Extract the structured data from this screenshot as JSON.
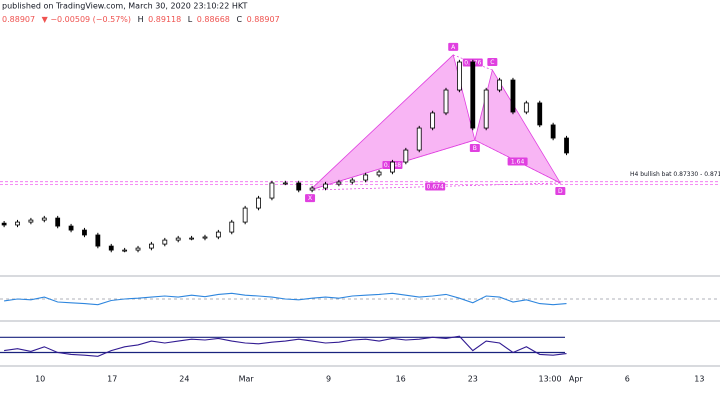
{
  "header": {
    "published": "published on TradingView.com, March 30, 2020 23:10:22 HKT",
    "open": "0.88907",
    "change": "▼ −0.00509 (−0.57%)",
    "high": {
      "label": "H",
      "value": "0.89118"
    },
    "low": {
      "label": "L",
      "value": "0.88668"
    },
    "close": {
      "label": "C",
      "value": "0.88907"
    }
  },
  "chart_data": [
    {
      "type": "candlestick",
      "color": "#000000",
      "xlim": [
        6.1,
        76
      ],
      "ylim": [
        0.822,
        0.9732
      ],
      "xticks": [
        10,
        17,
        24,
        {
          "value": 30,
          "label": "Mar"
        },
        {
          "value": 38,
          "label": "9"
        },
        {
          "value": 45,
          "label": "16"
        },
        {
          "value": 52,
          "label": "23"
        },
        {
          "value": 59.5,
          "label": "13:00"
        },
        {
          "value": 62,
          "label": "Apr"
        },
        {
          "value": 67,
          "label": "6"
        },
        {
          "value": 74,
          "label": "13"
        }
      ],
      "x": [
        6.5,
        7.8,
        9.1,
        10.4,
        11.7,
        13,
        14.3,
        15.6,
        16.9,
        18.2,
        19.5,
        20.8,
        22.1,
        23.4,
        24.7,
        26,
        27.3,
        28.6,
        29.9,
        31.2,
        32.5,
        33.8,
        35.1,
        36.4,
        37.7,
        39,
        40.3,
        41.6,
        42.9,
        44.2,
        45.5,
        46.8,
        48.1,
        49.4,
        50.7,
        52,
        53.3,
        54.6,
        55.9,
        57.2,
        58.5,
        59.8,
        61.1
      ],
      "open": [
        0.8505,
        0.8495,
        0.8511,
        0.8522,
        0.8533,
        0.8489,
        0.8467,
        0.844,
        0.8379,
        0.8357,
        0.8357,
        0.8368,
        0.839,
        0.8412,
        0.8423,
        0.8423,
        0.8429,
        0.8456,
        0.8511,
        0.8588,
        0.8643,
        0.8726,
        0.8726,
        0.8687,
        0.8698,
        0.872,
        0.8731,
        0.8742,
        0.877,
        0.8786,
        0.8841,
        0.8907,
        0.9028,
        0.9111,
        0.9237,
        0.9391,
        0.9028,
        0.9237,
        0.9292,
        0.9116,
        0.9166,
        0.9045,
        0.8973
      ],
      "high": [
        0.8517,
        0.8523,
        0.8534,
        0.8545,
        0.8545,
        0.8501,
        0.8479,
        0.8452,
        0.8391,
        0.8369,
        0.838,
        0.8402,
        0.8424,
        0.8435,
        0.8435,
        0.8441,
        0.8468,
        0.8523,
        0.86,
        0.8655,
        0.8738,
        0.8738,
        0.8738,
        0.871,
        0.8732,
        0.8743,
        0.8754,
        0.8782,
        0.8798,
        0.8853,
        0.8919,
        0.904,
        0.9123,
        0.9249,
        0.9403,
        0.9403,
        0.9249,
        0.9304,
        0.9304,
        0.9178,
        0.9178,
        0.9057,
        0.8985
      ],
      "low": [
        0.8483,
        0.8483,
        0.8499,
        0.851,
        0.8477,
        0.8455,
        0.8428,
        0.8367,
        0.8345,
        0.8345,
        0.8345,
        0.8356,
        0.8378,
        0.84,
        0.8411,
        0.8411,
        0.8417,
        0.8444,
        0.8499,
        0.8576,
        0.8631,
        0.8714,
        0.8675,
        0.8675,
        0.8686,
        0.8708,
        0.8719,
        0.873,
        0.8758,
        0.8774,
        0.8829,
        0.8895,
        0.9016,
        0.9099,
        0.9225,
        0.9016,
        0.9016,
        0.9225,
        0.9104,
        0.9104,
        0.9033,
        0.8961,
        0.8879
      ],
      "close": [
        0.8495,
        0.8511,
        0.8522,
        0.8533,
        0.8489,
        0.8467,
        0.844,
        0.8379,
        0.8357,
        0.8357,
        0.8368,
        0.839,
        0.8412,
        0.8423,
        0.8423,
        0.8429,
        0.8456,
        0.8511,
        0.8588,
        0.8643,
        0.8726,
        0.8726,
        0.8687,
        0.8698,
        0.872,
        0.8731,
        0.8742,
        0.877,
        0.8786,
        0.8841,
        0.8907,
        0.9028,
        0.9111,
        0.9237,
        0.9391,
        0.9028,
        0.9237,
        0.9292,
        0.9116,
        0.9166,
        0.9045,
        0.8973,
        0.8891
      ],
      "pattern": {
        "color": "#e040e0",
        "fill": "#f59cf0",
        "points": [
          {
            "label": "X",
            "x": 36.2,
            "price": 0.8687
          },
          {
            "label": "A",
            "x": 50.1,
            "price": 0.943
          },
          {
            "label": "B",
            "x": 52.2,
            "price": 0.8962
          },
          {
            "label": "C",
            "x": 53.9,
            "price": 0.9347
          },
          {
            "label": "D",
            "x": 60.5,
            "price": 0.8726
          }
        ],
        "ratios": {
          "XB": "0.548",
          "AC": "0.776",
          "BD": "1.64",
          "XD": "0.674"
        }
      },
      "levels": {
        "color": "#f06cf0",
        "values": [
          0.8733,
          0.8717
        ]
      },
      "annotation": "H4 bullish bat 0.87330 - 0.8717"
    },
    {
      "type": "line",
      "color": "#2e86de",
      "xlim": [
        6.1,
        76
      ],
      "ylim": [
        0,
        100
      ],
      "levels": {
        "color": "#9598a1",
        "values": [
          50
        ]
      },
      "x": [
        6.5,
        7.8,
        9.1,
        10.4,
        11.7,
        13,
        14.3,
        15.6,
        16.9,
        18.2,
        19.5,
        20.8,
        22.1,
        23.4,
        24.7,
        26,
        27.3,
        28.6,
        29.9,
        31.2,
        32.5,
        33.8,
        35.1,
        36.4,
        37.7,
        39,
        40.3,
        41.6,
        42.9,
        44.2,
        45.5,
        46.8,
        48.1,
        49.4,
        50.7,
        52,
        53.3,
        54.6,
        55.9,
        57.2,
        58.5,
        59.8,
        61.1
      ],
      "values": [
        45,
        50,
        48,
        55,
        42,
        40,
        38,
        35,
        46,
        50,
        52,
        55,
        58,
        55,
        60,
        56,
        62,
        65,
        60,
        58,
        55,
        50,
        48,
        52,
        55,
        52,
        58,
        60,
        62,
        65,
        60,
        55,
        58,
        62,
        52,
        40,
        58,
        55,
        42,
        48,
        38,
        35,
        38
      ]
    },
    {
      "type": "line",
      "color": "#311b92",
      "xlim": [
        6.1,
        76
      ],
      "ylim": [
        0,
        100
      ],
      "levels": {
        "color": "#1a237e",
        "values": [
          65,
          25
        ]
      },
      "x": [
        6.5,
        7.8,
        9.1,
        10.4,
        11.7,
        13,
        14.3,
        15.6,
        16.9,
        18.2,
        19.5,
        20.8,
        22.1,
        23.4,
        24.7,
        26,
        27.3,
        28.6,
        29.9,
        31.2,
        32.5,
        33.8,
        35.1,
        36.4,
        37.7,
        39,
        40.3,
        41.6,
        42.9,
        44.2,
        45.5,
        46.8,
        48.1,
        49.4,
        50.7,
        52,
        53.3,
        54.6,
        55.9,
        57.2,
        58.5,
        59.8,
        61.1
      ],
      "values": [
        30,
        35,
        28,
        40,
        25,
        20,
        18,
        15,
        30,
        40,
        45,
        55,
        50,
        55,
        60,
        58,
        62,
        55,
        50,
        48,
        52,
        55,
        60,
        55,
        50,
        52,
        58,
        60,
        55,
        62,
        58,
        60,
        65,
        62,
        68,
        30,
        55,
        50,
        25,
        40,
        20,
        18,
        22
      ]
    }
  ]
}
